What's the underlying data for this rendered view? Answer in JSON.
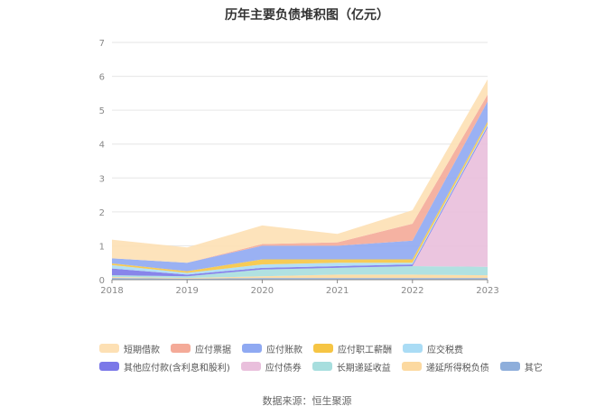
{
  "chart_data": {
    "type": "area",
    "title": "历年主要负债堆积图（亿元）",
    "categories": [
      "2018",
      "2019",
      "2020",
      "2021",
      "2022",
      "2023"
    ],
    "ylim": [
      0,
      7
    ],
    "yticks": [
      "0",
      "1",
      "2",
      "3",
      "4",
      "5",
      "6",
      "7"
    ],
    "stacked": true,
    "grid": true,
    "legend_position": "bottom",
    "series": [
      {
        "name": "其它",
        "color": "#8eaedb",
        "values": [
          0.05,
          0.03,
          0.05,
          0.05,
          0.05,
          0.05
        ]
      },
      {
        "name": "递延所得税负债",
        "color": "#fcd9a0",
        "values": [
          0.03,
          0.02,
          0.05,
          0.1,
          0.1,
          0.08
        ]
      },
      {
        "name": "长期递延收益",
        "color": "#a7dede",
        "values": [
          0.05,
          0.05,
          0.2,
          0.2,
          0.25,
          0.25
        ]
      },
      {
        "name": "应付债券",
        "color": "#e9bfdc",
        "values": [
          0,
          0,
          0,
          0,
          0,
          4.1
        ]
      },
      {
        "name": "其他应付款(含利息和股利)",
        "color": "#7b78e8",
        "values": [
          0.2,
          0.05,
          0.05,
          0.05,
          0.05,
          0.05
        ]
      },
      {
        "name": "应交税费",
        "color": "#aadcf5",
        "values": [
          0.1,
          0.05,
          0.1,
          0.1,
          0.05,
          0.05
        ]
      },
      {
        "name": "应付职工薪酬",
        "color": "#f6c544",
        "values": [
          0.05,
          0.05,
          0.15,
          0.1,
          0.1,
          0.08
        ]
      },
      {
        "name": "应付账款",
        "color": "#8fa9f2",
        "values": [
          0.15,
          0.25,
          0.4,
          0.4,
          0.55,
          0.6
        ]
      },
      {
        "name": "应付票据",
        "color": "#f4aa98",
        "values": [
          0,
          0,
          0.05,
          0.1,
          0.5,
          0.2
        ]
      },
      {
        "name": "短期借款",
        "color": "#fde0b4",
        "values": [
          0.55,
          0.45,
          0.55,
          0.25,
          0.4,
          0.45
        ]
      }
    ]
  },
  "legend": {
    "row1": [
      {
        "label": "短期借款",
        "color": "#fde0b4"
      },
      {
        "label": "应付票据",
        "color": "#f4aa98"
      },
      {
        "label": "应付账款",
        "color": "#8fa9f2"
      },
      {
        "label": "应付职工薪酬",
        "color": "#f6c544"
      },
      {
        "label": "应交税费",
        "color": "#aadcf5"
      }
    ],
    "row2": [
      {
        "label": "其他应付款(含利息和股利)",
        "color": "#7b78e8"
      },
      {
        "label": "应付债券",
        "color": "#e9bfdc"
      },
      {
        "label": "长期递延收益",
        "color": "#a7dede"
      },
      {
        "label": "递延所得税负债",
        "color": "#fcd9a0"
      },
      {
        "label": "其它",
        "color": "#8eaedb"
      }
    ]
  },
  "source": "数据来源：恒生聚源"
}
